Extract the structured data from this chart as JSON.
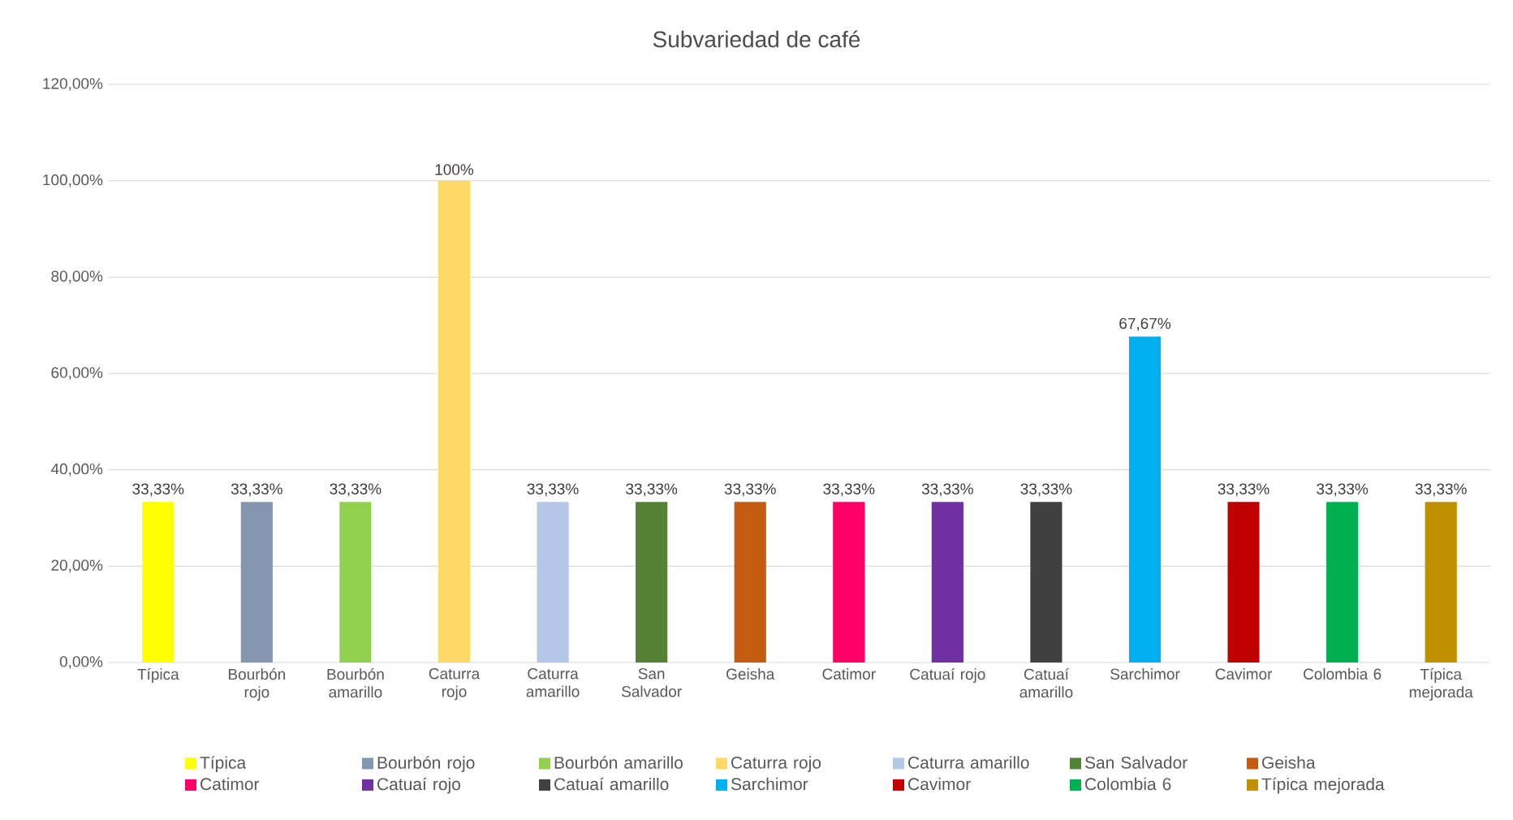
{
  "chart_data": {
    "type": "bar",
    "title": "Subvariedad de café",
    "stacked": true,
    "categories": [
      "Típica",
      "Bourbón rojo",
      "Bourbón amarillo",
      "Caturra rojo",
      "Caturra amarillo",
      "San Salvador",
      "Geisha",
      "Catimor",
      "Catuaí rojo",
      "Catuaí amarillo",
      "Sarchimor",
      "Cavimor",
      "Colombia 6",
      "Típica mejorada"
    ],
    "series": [
      {
        "name": "Típica",
        "color": "#ffff00",
        "values": [
          33.33,
          null,
          null,
          null,
          null,
          null,
          null,
          null,
          null,
          null,
          null,
          null,
          null,
          null
        ],
        "value_labels": [
          "33,33%",
          null,
          null,
          null,
          null,
          null,
          null,
          null,
          null,
          null,
          null,
          null,
          null,
          null
        ]
      },
      {
        "name": "Bourbón rojo",
        "color": "#8497b0",
        "values": [
          null,
          33.33,
          null,
          null,
          null,
          null,
          null,
          null,
          null,
          null,
          null,
          null,
          null,
          null
        ],
        "value_labels": [
          null,
          "33,33%",
          null,
          null,
          null,
          null,
          null,
          null,
          null,
          null,
          null,
          null,
          null,
          null
        ]
      },
      {
        "name": "Bourbón amarillo",
        "color": "#92d050",
        "values": [
          null,
          null,
          33.33,
          null,
          null,
          null,
          null,
          null,
          null,
          null,
          null,
          null,
          null,
          null
        ],
        "value_labels": [
          null,
          null,
          "33,33%",
          null,
          null,
          null,
          null,
          null,
          null,
          null,
          null,
          null,
          null,
          null
        ]
      },
      {
        "name": "Caturra rojo",
        "color": "#ffd966",
        "values": [
          null,
          null,
          null,
          100,
          null,
          null,
          null,
          null,
          null,
          null,
          null,
          null,
          null,
          null
        ],
        "value_labels": [
          null,
          null,
          null,
          "100%",
          null,
          null,
          null,
          null,
          null,
          null,
          null,
          null,
          null,
          null
        ]
      },
      {
        "name": "Caturra amarillo",
        "color": "#b4c7e7",
        "values": [
          null,
          null,
          null,
          null,
          33.33,
          null,
          null,
          null,
          null,
          null,
          null,
          null,
          null,
          null
        ],
        "value_labels": [
          null,
          null,
          null,
          null,
          "33,33%",
          null,
          null,
          null,
          null,
          null,
          null,
          null,
          null,
          null
        ]
      },
      {
        "name": "San Salvador",
        "color": "#548235",
        "values": [
          null,
          null,
          null,
          null,
          null,
          33.33,
          null,
          null,
          null,
          null,
          null,
          null,
          null,
          null
        ],
        "value_labels": [
          null,
          null,
          null,
          null,
          null,
          "33,33%",
          null,
          null,
          null,
          null,
          null,
          null,
          null,
          null
        ]
      },
      {
        "name": "Geisha",
        "color": "#c55a11",
        "values": [
          null,
          null,
          null,
          null,
          null,
          null,
          33.33,
          null,
          null,
          null,
          null,
          null,
          null,
          null
        ],
        "value_labels": [
          null,
          null,
          null,
          null,
          null,
          null,
          "33,33%",
          null,
          null,
          null,
          null,
          null,
          null,
          null
        ]
      },
      {
        "name": "Catimor",
        "color": "#ff0066",
        "values": [
          null,
          null,
          null,
          null,
          null,
          null,
          null,
          33.33,
          null,
          null,
          null,
          null,
          null,
          null
        ],
        "value_labels": [
          null,
          null,
          null,
          null,
          null,
          null,
          null,
          "33,33%",
          null,
          null,
          null,
          null,
          null,
          null
        ]
      },
      {
        "name": "Catuaí rojo",
        "color": "#7030a0",
        "values": [
          null,
          null,
          null,
          null,
          null,
          null,
          null,
          null,
          33.33,
          null,
          null,
          null,
          null,
          null
        ],
        "value_labels": [
          null,
          null,
          null,
          null,
          null,
          null,
          null,
          null,
          "33,33%",
          null,
          null,
          null,
          null,
          null
        ]
      },
      {
        "name": "Catuaí amarillo",
        "color": "#404040",
        "values": [
          null,
          null,
          null,
          null,
          null,
          null,
          null,
          null,
          null,
          33.33,
          null,
          null,
          null,
          null
        ],
        "value_labels": [
          null,
          null,
          null,
          null,
          null,
          null,
          null,
          null,
          null,
          "33,33%",
          null,
          null,
          null,
          null
        ]
      },
      {
        "name": "Sarchimor",
        "color": "#00b0f0",
        "values": [
          null,
          null,
          null,
          null,
          null,
          null,
          null,
          null,
          null,
          null,
          67.67,
          null,
          null,
          null
        ],
        "value_labels": [
          null,
          null,
          null,
          null,
          null,
          null,
          null,
          null,
          null,
          null,
          "67,67%",
          null,
          null,
          null
        ]
      },
      {
        "name": "Cavimor",
        "color": "#c00000",
        "values": [
          null,
          null,
          null,
          null,
          null,
          null,
          null,
          null,
          null,
          null,
          null,
          33.33,
          null,
          null
        ],
        "value_labels": [
          null,
          null,
          null,
          null,
          null,
          null,
          null,
          null,
          null,
          null,
          null,
          "33,33%",
          null,
          null
        ]
      },
      {
        "name": "Colombia 6",
        "color": "#00b050",
        "values": [
          null,
          null,
          null,
          null,
          null,
          null,
          null,
          null,
          null,
          null,
          null,
          null,
          33.33,
          null
        ],
        "value_labels": [
          null,
          null,
          null,
          null,
          null,
          null,
          null,
          null,
          null,
          null,
          null,
          null,
          "33,33%",
          null
        ]
      },
      {
        "name": "Típica mejorada",
        "color": "#bf9000",
        "values": [
          null,
          null,
          null,
          null,
          null,
          null,
          null,
          null,
          null,
          null,
          null,
          null,
          null,
          33.33
        ],
        "value_labels": [
          null,
          null,
          null,
          null,
          null,
          null,
          null,
          null,
          null,
          null,
          null,
          null,
          null,
          "33,33%"
        ]
      }
    ],
    "ylim": [
      0,
      120
    ],
    "yticks": [
      {
        "value": 0,
        "label": "0,00%"
      },
      {
        "value": 20,
        "label": "20,00%"
      },
      {
        "value": 40,
        "label": "40,00%"
      },
      {
        "value": 60,
        "label": "60,00%"
      },
      {
        "value": 80,
        "label": "80,00%"
      },
      {
        "value": 100,
        "label": "100,00%"
      },
      {
        "value": 120,
        "label": "120,00%"
      }
    ],
    "grid": "y",
    "legend": "bottom"
  }
}
